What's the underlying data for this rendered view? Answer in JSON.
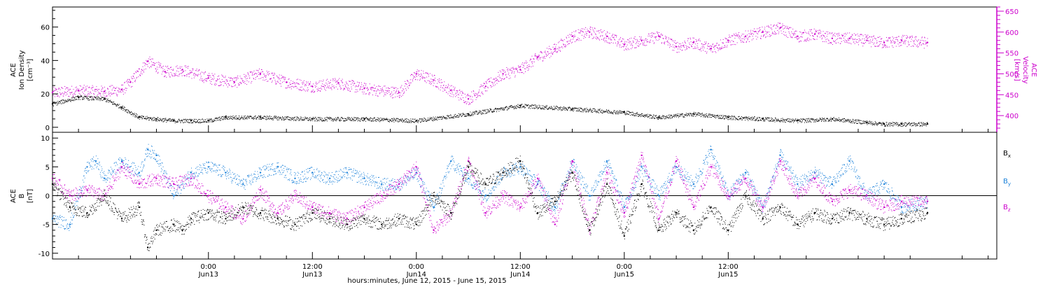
{
  "colors": {
    "axis": "#000000",
    "density": "#000000",
    "velocity": "#cc00cc",
    "bx": "#000000",
    "by": "#1a80d9",
    "bz": "#cc00cc"
  },
  "chart_data": [
    {
      "type": "scatter",
      "panel": "top",
      "ylabel": [
        "ACE",
        "Ion Density",
        "[cm⁻³]"
      ],
      "ylim": [
        -3,
        72
      ],
      "yticks": [
        0,
        20,
        40,
        60
      ],
      "ylabel_right": [
        "ACE",
        "Velocity",
        "[km/s]"
      ],
      "ylim_right": [
        360,
        660
      ],
      "yticks_right": [
        400,
        450,
        500,
        550,
        600,
        650
      ],
      "grid": false,
      "series": [
        {
          "key": "density",
          "axis": "left",
          "x": [
            0,
            3,
            6,
            8,
            10,
            12,
            14,
            16,
            18,
            20,
            24,
            30,
            36,
            42,
            48,
            54,
            60,
            66,
            70,
            74,
            78,
            82,
            86,
            90,
            94,
            96,
            98,
            101
          ],
          "y": [
            14,
            18,
            17,
            12,
            6,
            5,
            4,
            4,
            4,
            6,
            6,
            5,
            5,
            4,
            8,
            13,
            11,
            9,
            6,
            8,
            6,
            5,
            4,
            5,
            3,
            2,
            2,
            2
          ]
        },
        {
          "key": "velocity",
          "axis": "right",
          "x": [
            0,
            3,
            6,
            8,
            9,
            11,
            13,
            15,
            18,
            21,
            24,
            27,
            30,
            33,
            36,
            40,
            42,
            44,
            46,
            48,
            50,
            52,
            54,
            56,
            58,
            60,
            62,
            64,
            66,
            68,
            70,
            72,
            74,
            76,
            78,
            80,
            82,
            84,
            86,
            88,
            90,
            92,
            94,
            96,
            98,
            101
          ],
          "y": [
            455,
            460,
            458,
            462,
            480,
            530,
            505,
            510,
            490,
            480,
            500,
            480,
            470,
            478,
            465,
            455,
            500,
            485,
            460,
            440,
            470,
            500,
            510,
            540,
            560,
            590,
            600,
            590,
            570,
            580,
            590,
            565,
            575,
            560,
            580,
            590,
            600,
            610,
            590,
            595,
            585,
            585,
            580,
            575,
            580,
            575
          ]
        }
      ]
    },
    {
      "type": "scatter",
      "panel": "bottom",
      "ylabel": [
        "ACE",
        "B",
        "[nT]"
      ],
      "ylim": [
        -11,
        11
      ],
      "yticks": [
        -10,
        -5,
        0,
        5,
        10
      ],
      "zero_line": true,
      "legend": [
        "B",
        "B",
        "B"
      ],
      "legend_subscripts": [
        "x",
        "y",
        "z"
      ],
      "legend_placement": "right",
      "grid": false,
      "series": [
        {
          "key": "bx",
          "x": [
            0,
            2,
            4,
            6,
            8,
            10,
            11,
            12,
            14,
            15,
            16,
            18,
            20,
            22,
            24,
            26,
            28,
            30,
            32,
            34,
            36,
            38,
            40,
            42,
            44,
            46,
            48,
            50,
            52,
            54,
            56,
            58,
            60,
            62,
            64,
            66,
            68,
            70,
            72,
            74,
            76,
            78,
            80,
            82,
            84,
            86,
            88,
            90,
            92,
            94,
            96,
            98,
            101
          ],
          "y": [
            2,
            -2,
            -3,
            0,
            -4,
            -2,
            -9,
            -6,
            -5,
            -6,
            -4,
            -3,
            -4,
            -2,
            -3,
            -4,
            -5,
            -3,
            -4,
            -5,
            -4,
            -5,
            -4,
            -5,
            0,
            -3,
            5,
            2,
            4,
            6,
            -3,
            -1,
            4,
            -6,
            2,
            -7,
            2,
            -6,
            -3,
            -6,
            -2,
            -6,
            0,
            -4,
            -2,
            -5,
            -3,
            -4,
            -3,
            -4,
            -5,
            -4,
            -3
          ]
        },
        {
          "key": "by",
          "x": [
            0,
            2,
            4,
            5,
            6,
            8,
            10,
            11,
            12,
            14,
            16,
            18,
            20,
            22,
            24,
            26,
            28,
            30,
            32,
            34,
            36,
            38,
            40,
            42,
            44,
            46,
            48,
            50,
            52,
            54,
            56,
            58,
            60,
            62,
            64,
            66,
            68,
            70,
            72,
            74,
            76,
            78,
            80,
            82,
            84,
            86,
            88,
            90,
            92,
            94,
            96,
            98,
            101
          ],
          "y": [
            -4,
            -5,
            5,
            6,
            3,
            6,
            4,
            8,
            7,
            0,
            4,
            5,
            4,
            2,
            4,
            5,
            3,
            4,
            3,
            4,
            3,
            2,
            2,
            4,
            -2,
            6,
            3,
            0,
            4,
            5,
            2,
            -2,
            6,
            0,
            6,
            -2,
            5,
            0,
            5,
            2,
            8,
            0,
            4,
            -2,
            7,
            2,
            4,
            2,
            6,
            0,
            2,
            -2,
            -1
          ]
        },
        {
          "key": "bz",
          "x": [
            0,
            2,
            4,
            6,
            8,
            10,
            12,
            14,
            16,
            18,
            20,
            22,
            24,
            26,
            28,
            30,
            32,
            34,
            36,
            38,
            40,
            42,
            44,
            46,
            48,
            50,
            52,
            54,
            56,
            58,
            60,
            62,
            64,
            66,
            68,
            70,
            72,
            74,
            76,
            78,
            80,
            82,
            84,
            86,
            88,
            90,
            92,
            94,
            96,
            98,
            101
          ],
          "y": [
            3,
            0,
            1,
            0,
            5,
            2,
            3,
            2,
            3,
            0,
            -2,
            -4,
            1,
            -3,
            0,
            -2,
            -3,
            -4,
            -2,
            0,
            2,
            5,
            -6,
            -3,
            6,
            -3,
            0,
            -2,
            3,
            -5,
            6,
            -6,
            4,
            -3,
            7,
            -4,
            6,
            -2,
            5,
            0,
            3,
            -2,
            6,
            0,
            3,
            -1,
            1,
            0,
            -2,
            -1,
            -1
          ]
        }
      ]
    }
  ],
  "x_axis": {
    "range": [
      0,
      109
    ],
    "ticks": [
      {
        "x": 18,
        "time": "0:00",
        "date": "Jun13"
      },
      {
        "x": 30,
        "time": "12:00",
        "date": "Jun13"
      },
      {
        "x": 42,
        "time": "0:00",
        "date": "Jun14"
      },
      {
        "x": 54,
        "time": "12:00",
        "date": "Jun14"
      },
      {
        "x": 66,
        "time": "0:00",
        "date": "Jun15"
      },
      {
        "x": 78,
        "time": "12:00",
        "date": "Jun15"
      }
    ],
    "title": "hours:minutes, June 12, 2015 - June 15, 2015"
  }
}
